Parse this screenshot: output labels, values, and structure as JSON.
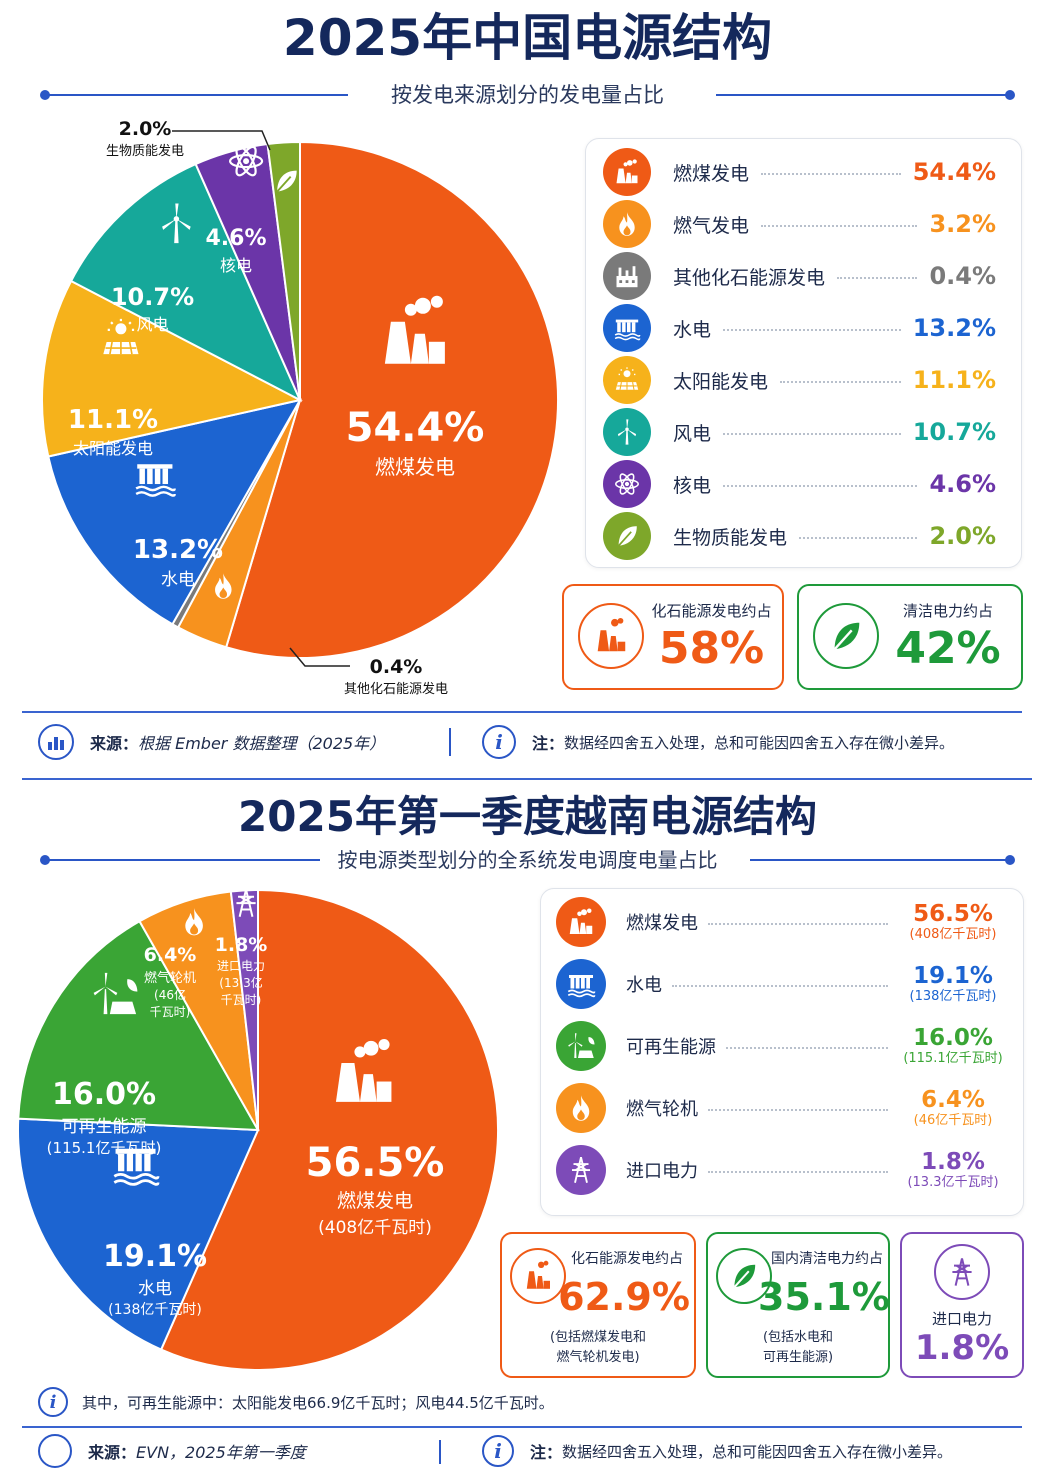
{
  "section1": {
    "title": "2025年中国电源结构",
    "subtitle": "按发电来源划分的发电量占比",
    "chart_data": {
      "type": "pie",
      "title": "2025年中国电源结构",
      "subtitle": "按发电来源划分的发电量占比",
      "categories": [
        "燃煤发电",
        "燃气发电",
        "其他化石能源发电",
        "水电",
        "太阳能发电",
        "风电",
        "核电",
        "生物质能发电"
      ],
      "values": [
        54.4,
        3.2,
        0.4,
        13.2,
        11.1,
        10.7,
        4.6,
        2.0
      ],
      "value_labels": [
        "54.4%",
        "3.2%",
        "0.4%",
        "13.2%",
        "11.1%",
        "10.7%",
        "4.6%",
        "2.0%"
      ],
      "colors": [
        "#ef5a16",
        "#f7921e",
        "#7a7a7a",
        "#1c64d1",
        "#f6b21b",
        "#16a89a",
        "#6b35a8",
        "#7ea72a"
      ],
      "icons": [
        "factory-icon",
        "flame-icon",
        "oil-refinery-icon",
        "dam-icon",
        "solar-panel-icon",
        "wind-turbine-icon",
        "atom-icon",
        "leaf-icon"
      ],
      "legend_placement": "right"
    },
    "summary": [
      {
        "label": "化石能源发电约占",
        "value": "58%",
        "color": "#ef5a16",
        "icon": "factory-icon"
      },
      {
        "label": "清洁电力约占",
        "value": "42%",
        "color": "#1e9a3a",
        "icon": "leaf-icon"
      }
    ],
    "source_label": "来源：",
    "source_text": "根据 Ember 数据整理（2025年）",
    "note_label": "注：",
    "note_text": "数据经四舍五入处理，总和可能因四舍五入存在微小差异。"
  },
  "section2": {
    "title": "2025年第一季度越南电源结构",
    "subtitle": "按电源类型划分的全系统发电调度电量占比",
    "chart_data": {
      "type": "pie",
      "title": "2025年第一季度越南电源结构",
      "subtitle": "按电源类型划分的全系统发电调度电量占比",
      "categories": [
        "燃煤发电",
        "水电",
        "可再生能源",
        "燃气轮机",
        "进口电力"
      ],
      "values": [
        56.5,
        19.1,
        16.0,
        6.4,
        1.8
      ],
      "value_labels": [
        "56.5%",
        "19.1%",
        "16.0%",
        "6.4%",
        "1.8%"
      ],
      "energy_labels": [
        "(408亿千瓦时)",
        "(138亿千瓦时)",
        "(115.1亿千瓦时)",
        "(46亿千瓦时)",
        "(13.3亿千瓦时)"
      ],
      "colors": [
        "#ef5a16",
        "#1c64d1",
        "#3aa535",
        "#f7921e",
        "#7d4bb8"
      ],
      "icons": [
        "factory-icon",
        "dam-icon",
        "wind-solar-icon",
        "flame-icon",
        "power-tower-icon"
      ],
      "legend_placement": "right"
    },
    "slice_text": {
      "gas_name": "燃气轮机",
      "gas_energy_1": "(46亿",
      "gas_energy_2": "千瓦时)",
      "import_name": "进口电力",
      "import_energy_1": "(13.3亿",
      "import_energy_2": "千瓦时)"
    },
    "summary": [
      {
        "label": "化石能源发电约占",
        "value": "62.9%",
        "note1": "(包括燃煤发电和",
        "note2": "燃气轮机发电)",
        "color": "#ef5a16",
        "icon": "factory-icon"
      },
      {
        "label": "国内清洁电力约占",
        "value": "35.1%",
        "note1": "(包括水电和",
        "note2": "可再生能源)",
        "color": "#1e9a3a",
        "icon": "leaf-icon"
      },
      {
        "label": "进口电力",
        "value": "1.8%",
        "color": "#7d4bb8",
        "icon": "power-tower-icon"
      }
    ],
    "note_text": "其中，可再生能源中：太阳能发电66.9亿千瓦时；风电44.5亿千瓦时。",
    "source_label": "来源：",
    "source_text": "EVN，2025年第一季度",
    "note_label": "注：",
    "note_text_2": "数据经四舍五入处理，总和可能因四舍五入存在微小差异。"
  }
}
